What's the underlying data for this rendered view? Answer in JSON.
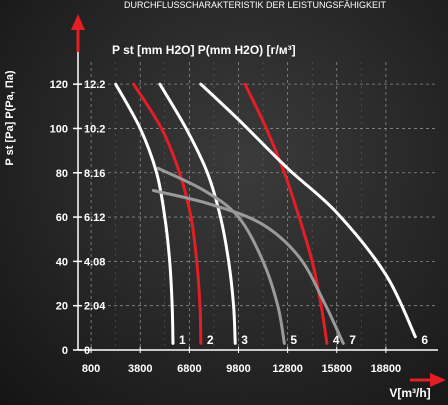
{
  "header": {
    "title": "DURCHFLUSSCHARAKTERISTIK DER LEISTUNGSFÄHIGKEIT"
  },
  "colors": {
    "accent": "#e31e24",
    "white": "#ffffff",
    "gray": "#9a9a9a",
    "grid": "#8a8a8a"
  },
  "chart_data": {
    "type": "line",
    "title": "",
    "subtitle": "P st [mm H2O] P(mm H2O) [г/м³]",
    "ylabel": "P st [Pa] P(Pa, Па)",
    "xlabel": "V[m³/h]",
    "xlim": [
      0,
      21800
    ],
    "ylim": [
      0,
      130
    ],
    "grid": true,
    "x_ticks": [
      800,
      3800,
      6800,
      9800,
      12800,
      15800,
      18800
    ],
    "x_tick_labels": [
      "800",
      "3800",
      "6800",
      "9800",
      "12800",
      "15800",
      "18800"
    ],
    "y_ticks": [
      0,
      20,
      40,
      60,
      80,
      100,
      120
    ],
    "y_tick_labels": [
      "0",
      "20",
      "40",
      "60",
      "80",
      "100",
      "120"
    ],
    "y2_tick_labels": [
      "0",
      "2.04",
      "4.08",
      "6.12",
      "8.16",
      "10.2",
      "12.2"
    ],
    "series": [
      {
        "name": "1",
        "color": "#ffffff",
        "points": [
          [
            2300,
            120
          ],
          [
            3800,
            100
          ],
          [
            4800,
            80
          ],
          [
            5300,
            60
          ],
          [
            5600,
            40
          ],
          [
            5750,
            20
          ],
          [
            5800,
            3
          ]
        ]
      },
      {
        "name": "2",
        "color": "#e31e24",
        "points": [
          [
            3400,
            120
          ],
          [
            5100,
            100
          ],
          [
            6200,
            80
          ],
          [
            6900,
            60
          ],
          [
            7250,
            40
          ],
          [
            7450,
            20
          ],
          [
            7500,
            3
          ]
        ]
      },
      {
        "name": "3",
        "color": "#ffffff",
        "points": [
          [
            5000,
            120
          ],
          [
            6600,
            100
          ],
          [
            7900,
            80
          ],
          [
            8700,
            60
          ],
          [
            9200,
            40
          ],
          [
            9500,
            20
          ],
          [
            9600,
            3
          ]
        ]
      },
      {
        "name": "5",
        "color": "#9a9a9a",
        "points": [
          [
            4900,
            82
          ],
          [
            7700,
            72
          ],
          [
            9800,
            60
          ],
          [
            11300,
            40
          ],
          [
            12200,
            20
          ],
          [
            12600,
            3
          ]
        ]
      },
      {
        "name": "4",
        "color": "#e31e24",
        "points": [
          [
            10200,
            120
          ],
          [
            11500,
            100
          ],
          [
            12600,
            80
          ],
          [
            13500,
            60
          ],
          [
            14300,
            40
          ],
          [
            14850,
            20
          ],
          [
            15200,
            3
          ]
        ]
      },
      {
        "name": "7",
        "color": "#9a9a9a",
        "points": [
          [
            4600,
            72
          ],
          [
            8000,
            66
          ],
          [
            11200,
            57
          ],
          [
            13500,
            42
          ],
          [
            15000,
            22
          ],
          [
            16200,
            3
          ]
        ]
      },
      {
        "name": "6",
        "color": "#ffffff",
        "points": [
          [
            7500,
            120
          ],
          [
            9800,
            104
          ],
          [
            12800,
            82
          ],
          [
            15800,
            62
          ],
          [
            18800,
            34
          ],
          [
            20600,
            6
          ]
        ]
      }
    ],
    "annotations": [
      {
        "text": "1",
        "x": 5800
      },
      {
        "text": "2",
        "x": 7500
      },
      {
        "text": "3",
        "x": 9600
      },
      {
        "text": "5",
        "x": 12600
      },
      {
        "text": "4",
        "x": 15200
      },
      {
        "text": "7",
        "x": 16200
      },
      {
        "text": "6",
        "x": 20600
      }
    ]
  }
}
